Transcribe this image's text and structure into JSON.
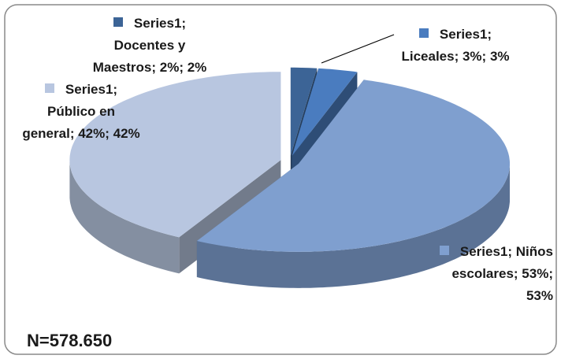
{
  "chart_data": {
    "type": "pie3d",
    "series_name": "Series1",
    "categories": [
      "Docentes y Maestros",
      "Liceales",
      "Niños escolares",
      "Público en general"
    ],
    "values": [
      2,
      3,
      53,
      42
    ],
    "value_labels": [
      "2%",
      "3%",
      "53%",
      "42%"
    ],
    "colors": [
      "#3c6496",
      "#4a7cbf",
      "#7f9fcf",
      "#b8c6e0"
    ],
    "annotation": "N=578.650"
  }
}
